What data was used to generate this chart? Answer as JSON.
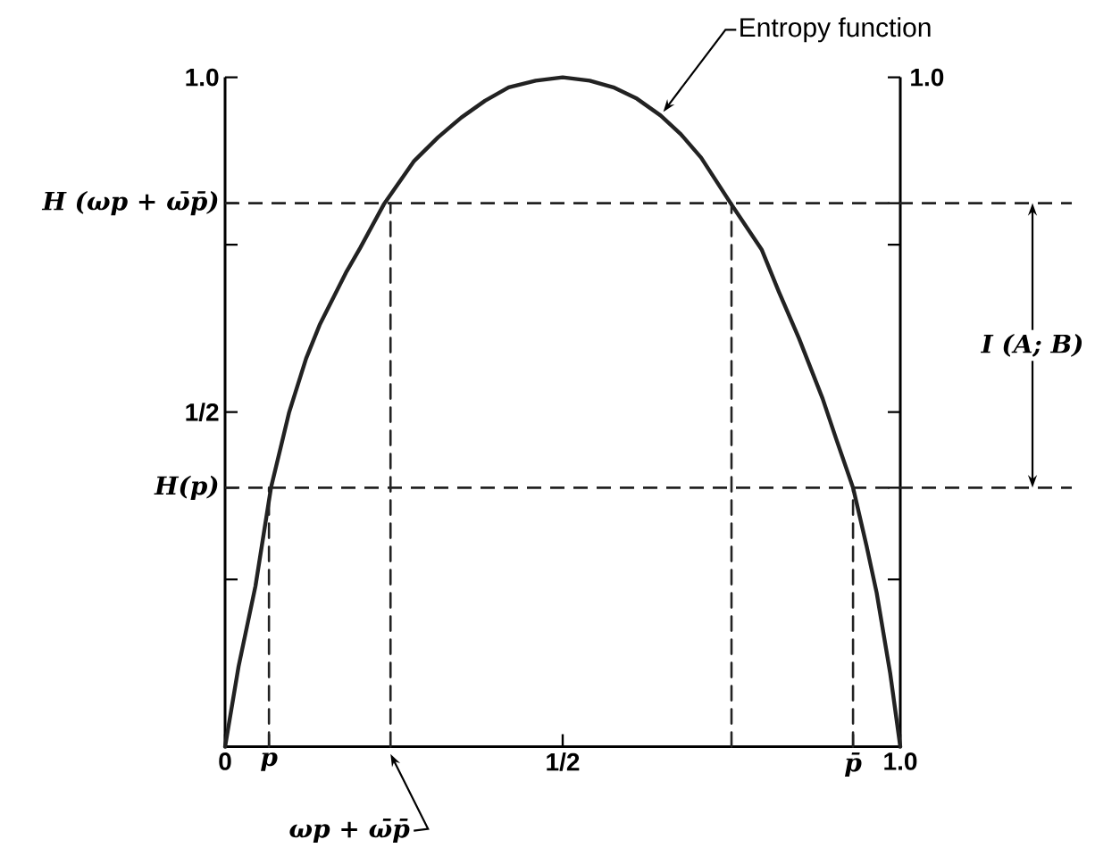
{
  "chart_data": {
    "type": "line",
    "xlim": [
      0,
      1
    ],
    "ylim": [
      0,
      1
    ],
    "xticks": [
      0,
      {
        "value": 0.065,
        "label": "p"
      },
      {
        "value": 0.5,
        "label": "1/2"
      },
      {
        "value": 0.93,
        "label": "p̄"
      },
      {
        "value": 1,
        "label": "1.0"
      }
    ],
    "yticks": [
      {
        "value": 0.25,
        "label": null
      },
      {
        "value": 0.387,
        "label": "H(p)"
      },
      {
        "value": 0.5,
        "label": "1/2"
      },
      {
        "value": 0.75,
        "label": null
      },
      {
        "value": 0.812,
        "label": "H (ωp + ω̄p̄)"
      },
      {
        "value": 1,
        "label": "1.0"
      }
    ],
    "series": [
      {
        "name": "Entropy function",
        "color": "#222222",
        "line_style": "solid",
        "x": [
          0,
          0.02,
          0.045,
          0.068,
          0.095,
          0.12,
          0.14,
          0.16,
          0.18,
          0.2,
          0.235,
          0.28,
          0.315,
          0.35,
          0.385,
          0.42,
          0.46,
          0.5,
          0.54,
          0.575,
          0.61,
          0.645,
          0.675,
          0.705,
          0.75,
          0.795,
          0.82,
          0.85,
          0.885,
          0.905,
          0.93,
          0.95,
          0.965,
          0.985,
          1
        ],
        "values": [
          0,
          0.12,
          0.24,
          0.387,
          0.5,
          0.58,
          0.63,
          0.67,
          0.71,
          0.745,
          0.81,
          0.875,
          0.91,
          0.94,
          0.965,
          0.985,
          0.995,
          1.0,
          0.995,
          0.985,
          0.968,
          0.943,
          0.915,
          0.88,
          0.81,
          0.742,
          0.68,
          0.61,
          0.52,
          0.46,
          0.387,
          0.3,
          0.23,
          0.11,
          0
        ]
      },
      {
        "color": "#222222",
        "line_style": "dashed",
        "x": [
          0.065,
          0.065
        ],
        "values": [
          0,
          0.387
        ]
      },
      {
        "color": "#222222",
        "line_style": "dashed",
        "x": [
          0.245,
          0.245
        ],
        "values": [
          0,
          0.812
        ]
      },
      {
        "color": "#222222",
        "line_style": "dashed",
        "x": [
          0.75,
          0.75
        ],
        "values": [
          0,
          0.812
        ]
      },
      {
        "color": "#222222",
        "line_style": "dashed",
        "x": [
          0.93,
          0.93
        ],
        "values": [
          0,
          0.387
        ]
      }
    ],
    "ref_lines": [
      {
        "axis": "y",
        "value": 0.812,
        "color": "#222222",
        "line_style": "dashed"
      },
      {
        "axis": "y",
        "value": 0.387,
        "color": "#222222",
        "line_style": "dashed"
      }
    ],
    "annotations": [
      "I (A; B)",
      {
        "text": "ωp + ω̄p̄",
        "x": 0.245,
        "y": 0
      },
      "1.0"
    ]
  }
}
